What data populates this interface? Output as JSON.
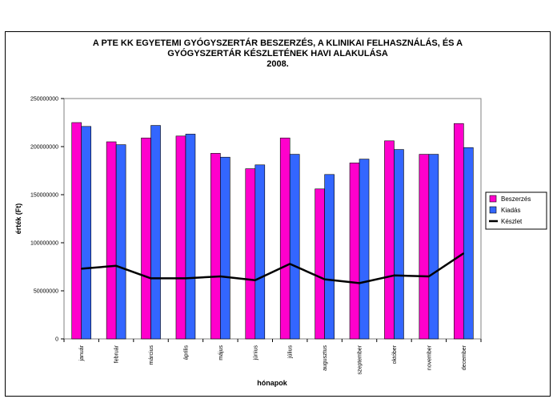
{
  "chart_data": {
    "type": "bar",
    "title_lines": [
      "A PTE KK EGYETEMI GYÓGYSZERTÁR BESZERZÉS, A KLINIKAI FELHASZNÁLÁS, ÉS A",
      "GYÓGYSZERTÁR KÉSZLETÉNEK HAVI ALAKULÁSA",
      "2008."
    ],
    "xlabel": "hónapok",
    "ylabel": "érték (Ft)",
    "ylim": [
      0,
      250000000
    ],
    "yticks": [
      0,
      50000000,
      100000000,
      150000000,
      200000000,
      250000000
    ],
    "ytick_labels": [
      "0",
      "50000000",
      "100000000",
      "150000000",
      "200000000",
      "250000000"
    ],
    "categories": [
      "január",
      "február",
      "március",
      "április",
      "május",
      "június",
      "július",
      "augusztus",
      "szeptember",
      "október",
      "november",
      "december"
    ],
    "series": [
      {
        "name": "Beszerzés",
        "kind": "bar",
        "color": "#ff00cc",
        "values": [
          225000000,
          205000000,
          209000000,
          211000000,
          193000000,
          177000000,
          209000000,
          156000000,
          183000000,
          206000000,
          192000000,
          224000000
        ]
      },
      {
        "name": "Kiadás",
        "kind": "bar",
        "color": "#3366ff",
        "values": [
          221000000,
          202000000,
          222000000,
          213000000,
          189000000,
          181000000,
          192000000,
          171000000,
          187000000,
          197000000,
          192000000,
          199000000
        ]
      },
      {
        "name": "Készlet",
        "kind": "line",
        "color": "#000000",
        "values": [
          73000000,
          76000000,
          63000000,
          63000000,
          65000000,
          61000000,
          78000000,
          62000000,
          58000000,
          66000000,
          65000000,
          89000000
        ]
      }
    ],
    "legend_position": "right",
    "grid": false
  }
}
